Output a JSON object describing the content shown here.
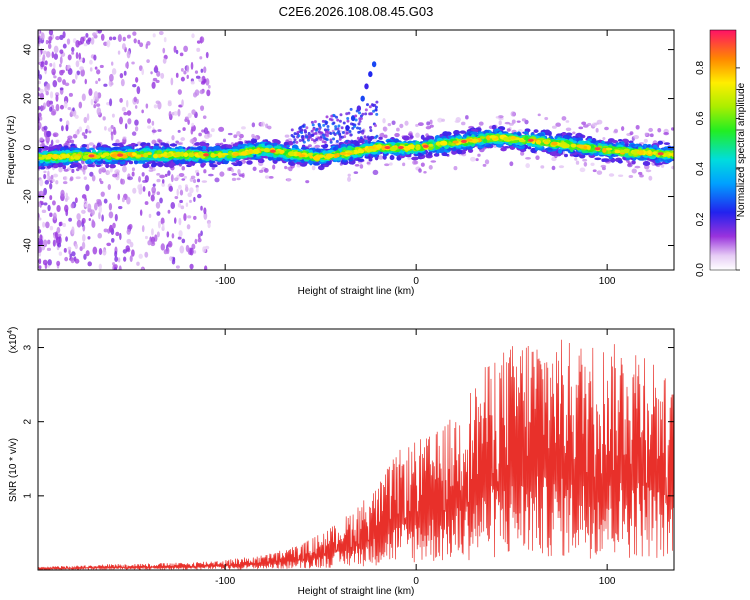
{
  "title": "C2E6.2026.108.08.45.G03",
  "colors": {
    "spectro_bg": "#ffffff",
    "snr_line": "#e8302a",
    "ridge_core": "#ff1a1a"
  },
  "chart_data": [
    {
      "type": "heatmap",
      "name": "spectrogram",
      "xlabel": "Height of straight line (km)",
      "ylabel": "Frequency (Hz)",
      "xlim": [
        -198,
        135
      ],
      "ylim": [
        -50,
        48
      ],
      "xticks": [
        -100,
        0,
        100
      ],
      "xtick_labels": [
        "-100",
        "0",
        "100"
      ],
      "yticks": [
        -40,
        -20,
        0,
        20,
        40
      ],
      "ytick_labels": [
        "-40",
        "-20",
        "0",
        "20",
        "40"
      ],
      "colorbar": {
        "label": "Normalized spectral amplitude",
        "range": [
          0,
          0.95
        ],
        "ticks": [
          0.0,
          0.2,
          0.4,
          0.6,
          0.8
        ],
        "tick_labels": [
          "0.0",
          "0.2",
          "0.4",
          "0.6",
          "0.8"
        ]
      },
      "ridge": {
        "description_points_x": [
          -198,
          -150,
          -100,
          -80,
          -50,
          -20,
          0,
          20,
          40,
          60,
          80,
          100,
          120,
          135
        ],
        "center_freq": [
          -4,
          -3,
          -3,
          -1,
          -4,
          0,
          0,
          2,
          4,
          3,
          1,
          -1,
          -2,
          -3
        ]
      },
      "chirp": {
        "x": [
          -36,
          -33,
          -30,
          -28,
          -26,
          -24,
          -22
        ],
        "freq": [
          8,
          12,
          16,
          20,
          25,
          30,
          34
        ]
      }
    },
    {
      "type": "line",
      "name": "snr",
      "xlabel": "Height of straight line (km)",
      "ylabel": "SNR (10 * v/v)",
      "y_multiplier": "(x10",
      "y_multiplier_exp": "4",
      "y_multiplier_close": ")",
      "xlim": [
        -198,
        135
      ],
      "ylim": [
        0,
        3.25
      ],
      "xticks": [
        -100,
        0,
        100
      ],
      "xtick_labels": [
        "-100",
        "0",
        "100"
      ],
      "yticks": [
        1,
        2,
        3
      ],
      "ytick_labels": [
        "1",
        "2",
        "3"
      ],
      "envelope": {
        "x": [
          -198,
          -160,
          -120,
          -100,
          -80,
          -60,
          -40,
          -30,
          -20,
          -10,
          0,
          10,
          20,
          40,
          60,
          80,
          100,
          120,
          135
        ],
        "max": [
          0.04,
          0.08,
          0.1,
          0.14,
          0.2,
          0.35,
          0.65,
          0.9,
          1.15,
          1.6,
          1.75,
          1.85,
          2.1,
          2.9,
          3.2,
          3.1,
          3.05,
          3.1,
          2.4
        ]
      }
    }
  ]
}
